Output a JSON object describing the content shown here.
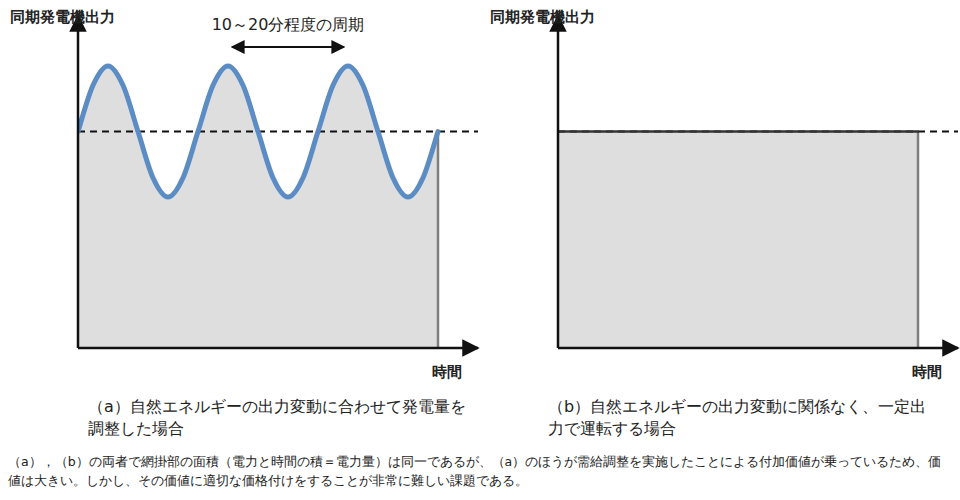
{
  "chart_data": [
    {
      "type": "line",
      "y_label": "同期発電機出力",
      "x_label": "時間",
      "caption_label": "（a）",
      "caption": "自然エネルギーの出力変動に合わせて発電量を調整した場合",
      "xlim": [
        0,
        50
      ],
      "ylim": [
        0,
        100
      ],
      "xticks": [],
      "yticks": [],
      "tick_labels": false,
      "reference_line": 66,
      "annotation": {
        "text": "10～20分程度の周期",
        "x": [
          18.75,
          33.75
        ]
      },
      "x": [
        0,
        1.875,
        3.75,
        5.625,
        7.5,
        9.375,
        11.25,
        13.125,
        15,
        16.875,
        18.75,
        20.625,
        22.5,
        24.375,
        26.25,
        28.125,
        30,
        31.875,
        33.75,
        35.625,
        37.5,
        39.375,
        41.25,
        43.125,
        45
      ],
      "series": [
        {
          "name": "同期発電機出力",
          "color": "#5b8cc4",
          "values": [
            66,
            80.1,
            86,
            80.1,
            66,
            51.9,
            46,
            51.9,
            66,
            80.1,
            86,
            80.1,
            66,
            51.9,
            46,
            51.9,
            66,
            80.1,
            86,
            80.1,
            66,
            51.9,
            46,
            51.9,
            66
          ]
        }
      ]
    },
    {
      "type": "line",
      "y_label": "同期発電機出力",
      "x_label": "時間",
      "caption_label": "（b）",
      "caption": "自然エネルギーの出力変動に関係なく、一定出力で運転する場合",
      "xlim": [
        0,
        50
      ],
      "ylim": [
        0,
        100
      ],
      "xticks": [],
      "yticks": [],
      "tick_labels": false,
      "reference_line": 66,
      "x": [
        0,
        45
      ],
      "series": [
        {
          "name": "同期発電機出力",
          "color": "#333333",
          "values": [
            66,
            66
          ]
        }
      ]
    }
  ],
  "note": "（a），（b）の両者で網掛部の面積（電力と時間の積＝電力量）は同一であるが、（a）のほうが需給調整を実施したことによる付加価値が乗っているため、価値は大きい。しかし、その価値に適切な価格付けをすることが非常に難しい課題である。"
}
